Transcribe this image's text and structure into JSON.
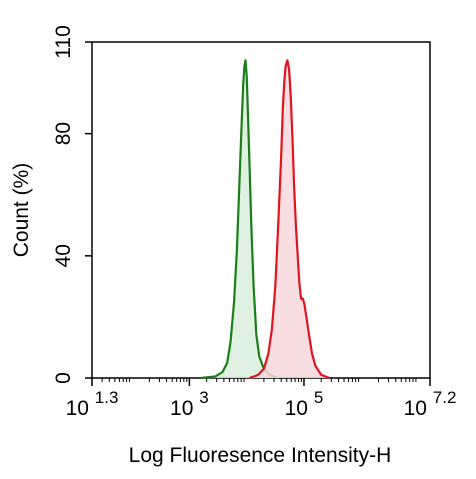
{
  "chart_data": {
    "type": "area",
    "title": "",
    "xlabel": "Log Fluoresence Intensity-H",
    "ylabel": "Count  (%)",
    "xscale": "log",
    "xlim": [
      1.3,
      7.2
    ],
    "ylim": [
      0,
      110
    ],
    "x_ticks": [
      {
        "base": "10",
        "exp": "1.3",
        "value": 1.3
      },
      {
        "base": "10",
        "exp": "3",
        "value": 3
      },
      {
        "base": "10",
        "exp": "5",
        "value": 5
      },
      {
        "base": "10",
        "exp": "7.2",
        "value": 7.2
      }
    ],
    "y_ticks": [
      {
        "label": "0",
        "value": 0
      },
      {
        "label": "40",
        "value": 40
      },
      {
        "label": "80",
        "value": 80
      },
      {
        "label": "110",
        "value": 110
      }
    ],
    "grid": false,
    "legend": "none",
    "series": [
      {
        "color": "#1a7f1a",
        "fill": "#dcefdc",
        "points": [
          [
            3.2,
            0
          ],
          [
            3.45,
            0.5
          ],
          [
            3.58,
            2
          ],
          [
            3.66,
            5
          ],
          [
            3.72,
            12
          ],
          [
            3.78,
            25
          ],
          [
            3.83,
            42
          ],
          [
            3.87,
            62
          ],
          [
            3.91,
            82
          ],
          [
            3.94,
            96
          ],
          [
            3.96,
            102
          ],
          [
            3.98,
            104
          ],
          [
            4.0,
            99
          ],
          [
            4.02,
            88
          ],
          [
            4.05,
            70
          ],
          [
            4.08,
            50
          ],
          [
            4.12,
            30
          ],
          [
            4.17,
            14
          ],
          [
            4.22,
            7
          ],
          [
            4.3,
            3
          ],
          [
            4.4,
            1
          ],
          [
            4.55,
            0
          ]
        ]
      },
      {
        "color": "#e0141e",
        "fill": "#f8d8dc",
        "points": [
          [
            4.05,
            0
          ],
          [
            4.2,
            1
          ],
          [
            4.3,
            3
          ],
          [
            4.38,
            8
          ],
          [
            4.44,
            16
          ],
          [
            4.5,
            30
          ],
          [
            4.55,
            50
          ],
          [
            4.6,
            72
          ],
          [
            4.63,
            88
          ],
          [
            4.66,
            98
          ],
          [
            4.68,
            102
          ],
          [
            4.71,
            104
          ],
          [
            4.74,
            101
          ],
          [
            4.77,
            92
          ],
          [
            4.8,
            78
          ],
          [
            4.83,
            62
          ],
          [
            4.86,
            50
          ],
          [
            4.89,
            40
          ],
          [
            4.92,
            31
          ],
          [
            4.95,
            26
          ],
          [
            4.98,
            26
          ],
          [
            5.01,
            24
          ],
          [
            5.05,
            19
          ],
          [
            5.09,
            14
          ],
          [
            5.14,
            8
          ],
          [
            5.2,
            4
          ],
          [
            5.3,
            1
          ],
          [
            5.45,
            0
          ]
        ]
      }
    ]
  }
}
